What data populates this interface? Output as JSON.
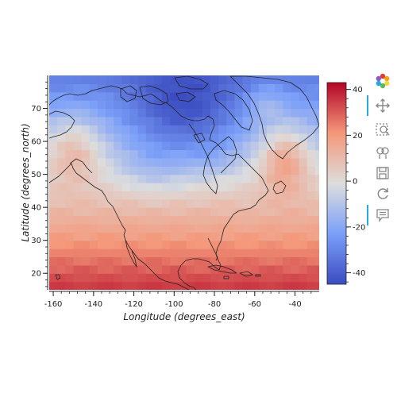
{
  "chart_data": {
    "type": "heatmap",
    "title": "",
    "xlabel": "Longitude (degrees_east)",
    "ylabel": "Latitude (degrees_north)",
    "xlim": [
      -162,
      -28
    ],
    "ylim": [
      15,
      80
    ],
    "x_ticks": [
      -160,
      -140,
      -120,
      -100,
      -80,
      -60,
      -40
    ],
    "y_ticks": [
      20,
      30,
      40,
      50,
      60,
      70
    ],
    "colorbar": {
      "colormap": "coolwarm",
      "range": [
        -45,
        43
      ],
      "ticks": [
        40,
        20,
        0,
        -20,
        -40
      ],
      "low_color": "#3b4cc0",
      "mid_color": "#dddddd",
      "high_color": "#b40426"
    },
    "grid_resolution_deg": [
      4,
      2.5
    ],
    "field_description_values": {
      "cold_center_lon_lat": [
        -95,
        70
      ],
      "cold_center_value": -42,
      "equatorial_value": 33
    }
  },
  "toolbar": {
    "tools": [
      {
        "name": "bokeh-logo-icon",
        "active": false
      },
      {
        "name": "pan-icon",
        "active": true
      },
      {
        "name": "box-zoom-icon",
        "active": false
      },
      {
        "name": "wheel-zoom-icon",
        "active": false
      },
      {
        "name": "save-icon",
        "active": false
      },
      {
        "name": "reset-icon",
        "active": false
      },
      {
        "name": "hover-icon",
        "active": true
      }
    ]
  }
}
